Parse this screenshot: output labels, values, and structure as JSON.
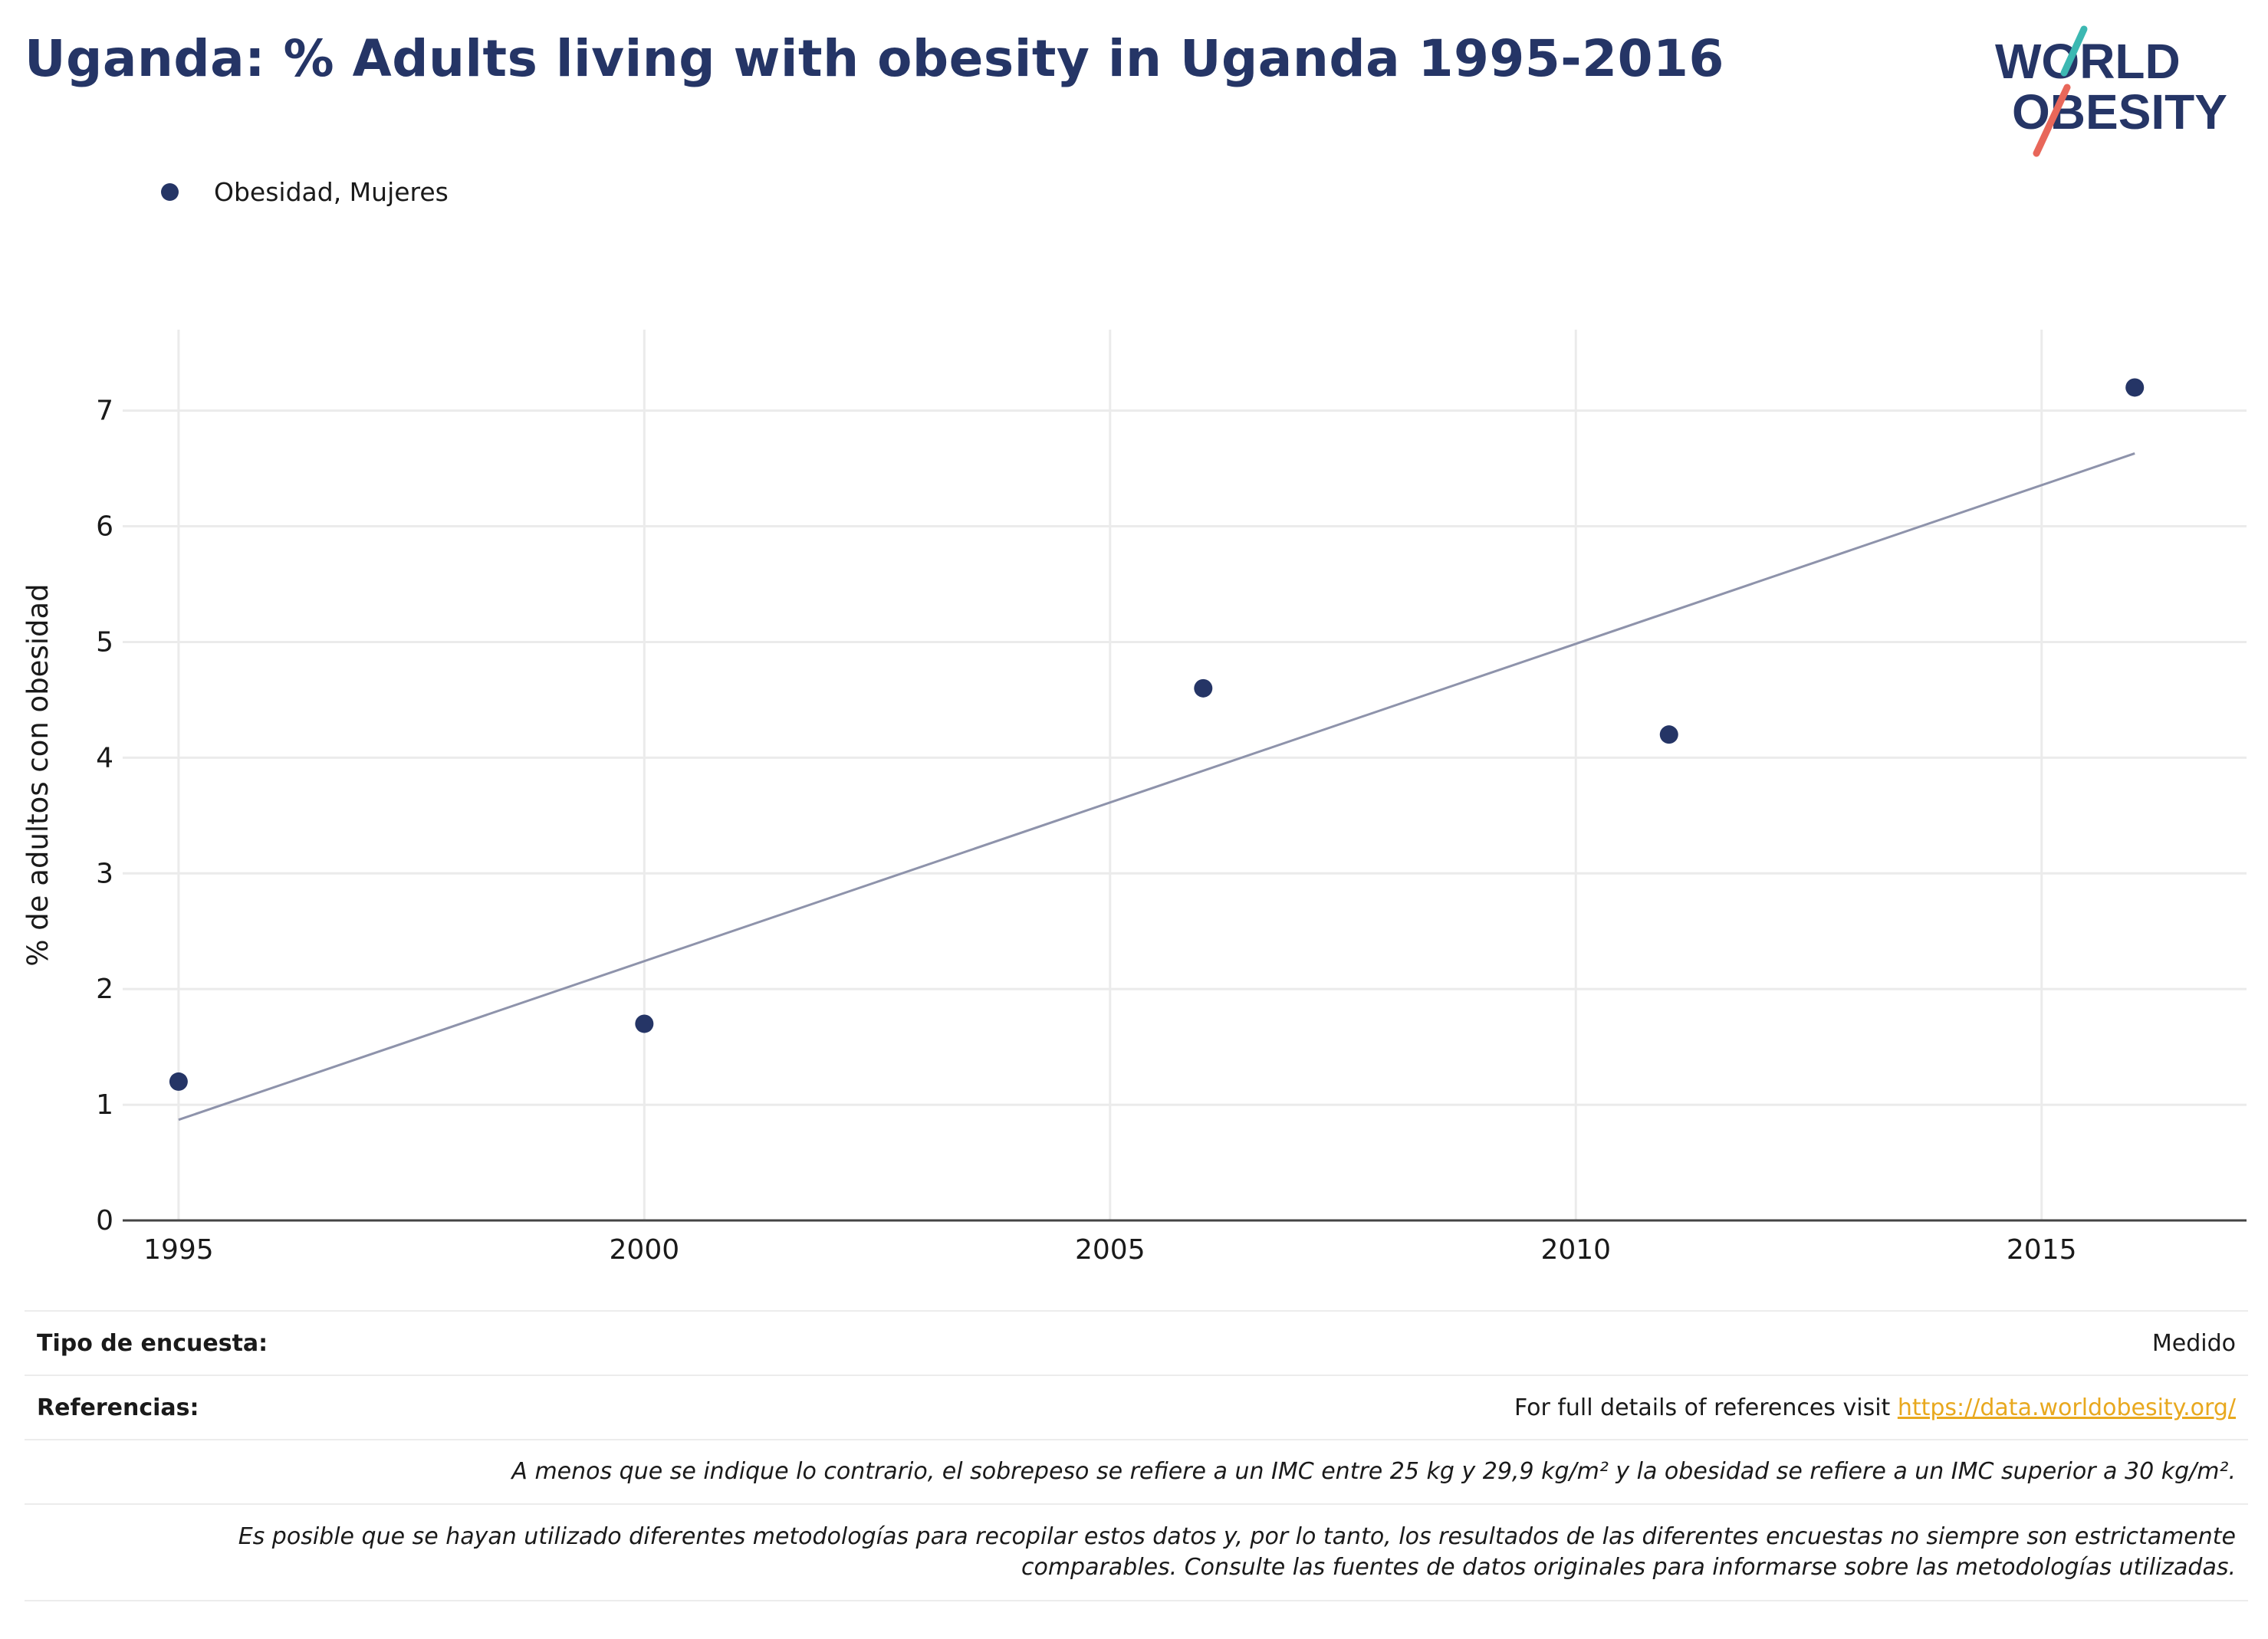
{
  "header": {
    "title": "Uganda: % Adults living with obesity in Uganda 1995-2016",
    "logo_line1": "WORLD",
    "logo_line2": "OBESITY"
  },
  "legend": {
    "items": [
      {
        "label": "Obesidad, Mujeres",
        "color": "#253566"
      }
    ]
  },
  "colors": {
    "points": "#253566",
    "trendline": "#8e93ab",
    "grid": "#ebebeb",
    "axis": "#444444",
    "link": "#e8a81e"
  },
  "chart_data": {
    "type": "scatter",
    "ylabel": "% de adultos con obesidad",
    "xlabel": "",
    "xlim": [
      1994.4,
      2017.2
    ],
    "ylim": [
      0,
      7.7
    ],
    "xticks": [
      1995,
      2000,
      2005,
      2010,
      2015
    ],
    "yticks": [
      0,
      1,
      2,
      3,
      4,
      5,
      6,
      7
    ],
    "grid": true,
    "legend_position": "top-left",
    "series": [
      {
        "name": "Obesidad, Mujeres",
        "x": [
          1995,
          2000,
          2006,
          2011,
          2016
        ],
        "y": [
          1.2,
          1.7,
          4.6,
          4.2,
          7.2
        ]
      }
    ],
    "trendline": {
      "x": [
        1995,
        2016
      ],
      "y": [
        0.87,
        6.63
      ]
    }
  },
  "footer": {
    "survey_type_label": "Tipo de encuesta:",
    "survey_type_value": "Medido",
    "references_label": "Referencias:",
    "references_text": "For full details of references visit ",
    "references_link": "https://data.worldobesity.org/",
    "note1": "A menos que se indique lo contrario, el sobrepeso se refiere a un IMC entre 25 kg y 29,9 kg/m² y la obesidad se refiere a un IMC superior a 30 kg/m².",
    "note2_line1": "Es posible que se hayan utilizado diferentes metodologías para recopilar estos datos y, por lo tanto, los resultados de las diferentes encuestas no siempre son estrictamente",
    "note2_line2": "comparables. Consulte las fuentes de datos originales para informarse sobre las metodologías utilizadas."
  }
}
